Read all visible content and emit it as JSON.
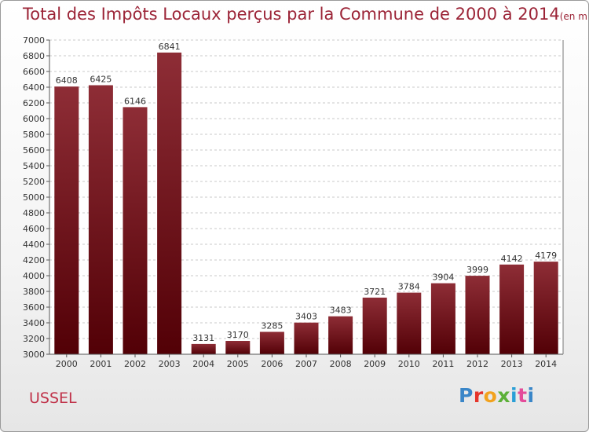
{
  "title": "Total des Impôts Locaux perçus par la Commune de 2000 à 2014",
  "title_unit": "(en milliers d'€)",
  "commune": "USSEL",
  "logo": [
    "P",
    "r",
    "o",
    "x",
    "i",
    "t",
    "i"
  ],
  "colors": {
    "bar_top": "#8e2d36",
    "bar_bottom": "#520006",
    "title": "#9b2336",
    "commune": "#c0334a"
  },
  "chart_data": {
    "type": "bar",
    "title": "Total des Impôts Locaux perçus par la Commune de 2000 à 2014",
    "categories": [
      "2000",
      "2001",
      "2002",
      "2003",
      "2004",
      "2005",
      "2006",
      "2007",
      "2008",
      "2009",
      "2010",
      "2011",
      "2012",
      "2013",
      "2014"
    ],
    "values": [
      6408,
      6425,
      6146,
      6841,
      3131,
      3170,
      3285,
      3403,
      3483,
      3721,
      3784,
      3904,
      3999,
      4142,
      4179
    ],
    "ylim": [
      3000,
      7000
    ],
    "yticks": [
      3000,
      3200,
      3400,
      3600,
      3800,
      4000,
      4200,
      4400,
      4600,
      4800,
      5000,
      5200,
      5400,
      5600,
      5800,
      6000,
      6200,
      6400,
      6600,
      6800,
      7000
    ],
    "xlabel": "",
    "ylabel": "",
    "grid": true
  }
}
